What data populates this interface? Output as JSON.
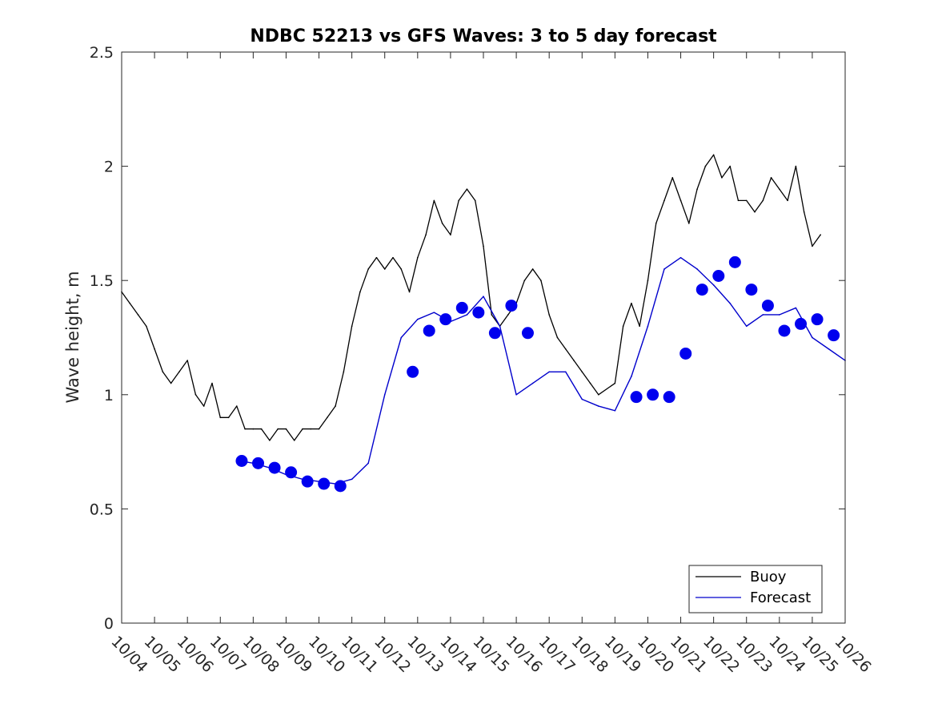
{
  "chart_data": {
    "type": "line",
    "title": "NDBC 52213 vs GFS Waves: 3 to 5 day forecast",
    "xlabel": "",
    "ylabel": "Wave height, m",
    "xlim": [
      0,
      22
    ],
    "ylim": [
      0,
      2.5
    ],
    "x_tick_values": [
      0,
      1,
      2,
      3,
      4,
      5,
      6,
      7,
      8,
      9,
      10,
      11,
      12,
      13,
      14,
      15,
      16,
      17,
      18,
      19,
      20,
      21,
      22
    ],
    "x_tick_labels": [
      "10/04",
      "10/05",
      "10/06",
      "10/07",
      "10/08",
      "10/09",
      "10/10",
      "10/11",
      "10/12",
      "10/13",
      "10/14",
      "10/15",
      "10/16",
      "10/17",
      "10/18",
      "10/19",
      "10/20",
      "10/21",
      "10/22",
      "10/23",
      "10/24",
      "10/25",
      "10/26"
    ],
    "y_tick_values": [
      0,
      0.5,
      1,
      1.5,
      2,
      2.5
    ],
    "y_tick_labels": [
      "0",
      "0.5",
      "1",
      "1.5",
      "2",
      "2.5"
    ],
    "legend": {
      "position": "bottom-right",
      "entries": [
        {
          "label": "Buoy",
          "color": "#000000"
        },
        {
          "label": "Forecast",
          "color": "#0000cc"
        }
      ]
    },
    "series": [
      {
        "name": "Buoy",
        "color": "#000000",
        "x": [
          0,
          0.25,
          0.5,
          0.75,
          1,
          1.25,
          1.5,
          1.75,
          2,
          2.25,
          2.5,
          2.75,
          3,
          3.25,
          3.5,
          3.75,
          4,
          4.25,
          4.5,
          4.75,
          5,
          5.25,
          5.5,
          5.75,
          6,
          6.25,
          6.5,
          6.75,
          7,
          7.25,
          7.5,
          7.75,
          8,
          8.25,
          8.5,
          8.75,
          9,
          9.25,
          9.5,
          9.75,
          10,
          10.25,
          10.5,
          10.75,
          11,
          11.25,
          11.5,
          11.75,
          12,
          12.25,
          12.5,
          12.75,
          13,
          13.25,
          13.5,
          13.75,
          14,
          14.25,
          14.5,
          15,
          15.25,
          15.5,
          15.75,
          16,
          16.25,
          16.5,
          16.75,
          17,
          17.25,
          17.5,
          17.75,
          18,
          18.25,
          18.5,
          18.75,
          19,
          19.25,
          19.5,
          19.75,
          20,
          20.25,
          20.5,
          20.75,
          21,
          21.25
        ],
        "values": [
          1.45,
          1.4,
          1.35,
          1.3,
          1.2,
          1.1,
          1.05,
          1.1,
          1.15,
          1.0,
          0.95,
          1.05,
          0.9,
          0.9,
          0.95,
          0.85,
          0.85,
          0.85,
          0.8,
          0.85,
          0.85,
          0.8,
          0.85,
          0.85,
          0.85,
          0.9,
          0.95,
          1.1,
          1.3,
          1.45,
          1.55,
          1.6,
          1.55,
          1.6,
          1.55,
          1.45,
          1.6,
          1.7,
          1.85,
          1.75,
          1.7,
          1.85,
          1.9,
          1.85,
          1.65,
          1.35,
          1.3,
          1.35,
          1.4,
          1.5,
          1.55,
          1.5,
          1.35,
          1.25,
          1.2,
          1.15,
          1.1,
          1.05,
          1.0,
          1.05,
          1.3,
          1.4,
          1.3,
          1.5,
          1.75,
          1.85,
          1.95,
          1.85,
          1.75,
          1.9,
          2.0,
          2.05,
          1.95,
          2.0,
          1.85,
          1.85,
          1.8,
          1.85,
          1.95,
          1.9,
          1.85,
          2.0,
          1.8,
          1.65,
          1.7
        ]
      },
      {
        "name": "Forecast",
        "color": "#0000cc",
        "x": [
          3.6,
          4.0,
          4.5,
          5.0,
          5.5,
          6.0,
          6.5,
          7.0,
          7.5,
          8.0,
          8.5,
          9.0,
          9.5,
          10.0,
          10.5,
          11.0,
          11.5,
          12.0,
          12.5,
          13.0,
          13.5,
          14.0,
          14.5,
          15.0,
          15.5,
          16.0,
          16.5,
          17.0,
          17.5,
          18.0,
          18.5,
          19.0,
          19.5,
          20.0,
          20.5,
          21.0,
          21.5,
          22.0
        ],
        "values": [
          0.71,
          0.7,
          0.68,
          0.65,
          0.63,
          0.62,
          0.61,
          0.63,
          0.7,
          1.0,
          1.25,
          1.33,
          1.36,
          1.32,
          1.35,
          1.43,
          1.3,
          1.0,
          1.05,
          1.1,
          1.1,
          0.98,
          0.95,
          0.93,
          1.08,
          1.3,
          1.55,
          1.6,
          1.55,
          1.48,
          1.4,
          1.3,
          1.35,
          1.35,
          1.38,
          1.25,
          1.2,
          1.15
        ]
      }
    ],
    "forecast_markers": {
      "x": [
        3.65,
        4.15,
        4.65,
        5.15,
        5.65,
        6.15,
        6.65,
        8.85,
        9.35,
        9.85,
        10.35,
        10.85,
        11.35,
        11.85,
        12.35,
        15.65,
        16.15,
        16.65,
        17.15,
        17.65,
        18.15,
        18.65,
        19.15,
        19.65,
        20.15,
        20.65,
        21.15,
        21.65
      ],
      "values": [
        0.71,
        0.7,
        0.68,
        0.66,
        0.62,
        0.61,
        0.6,
        1.1,
        1.28,
        1.33,
        1.38,
        1.36,
        1.27,
        1.39,
        1.27,
        0.99,
        1.0,
        0.99,
        1.18,
        1.46,
        1.52,
        1.58,
        1.46,
        1.39,
        1.28,
        1.31,
        1.33,
        1.26
      ]
    }
  }
}
